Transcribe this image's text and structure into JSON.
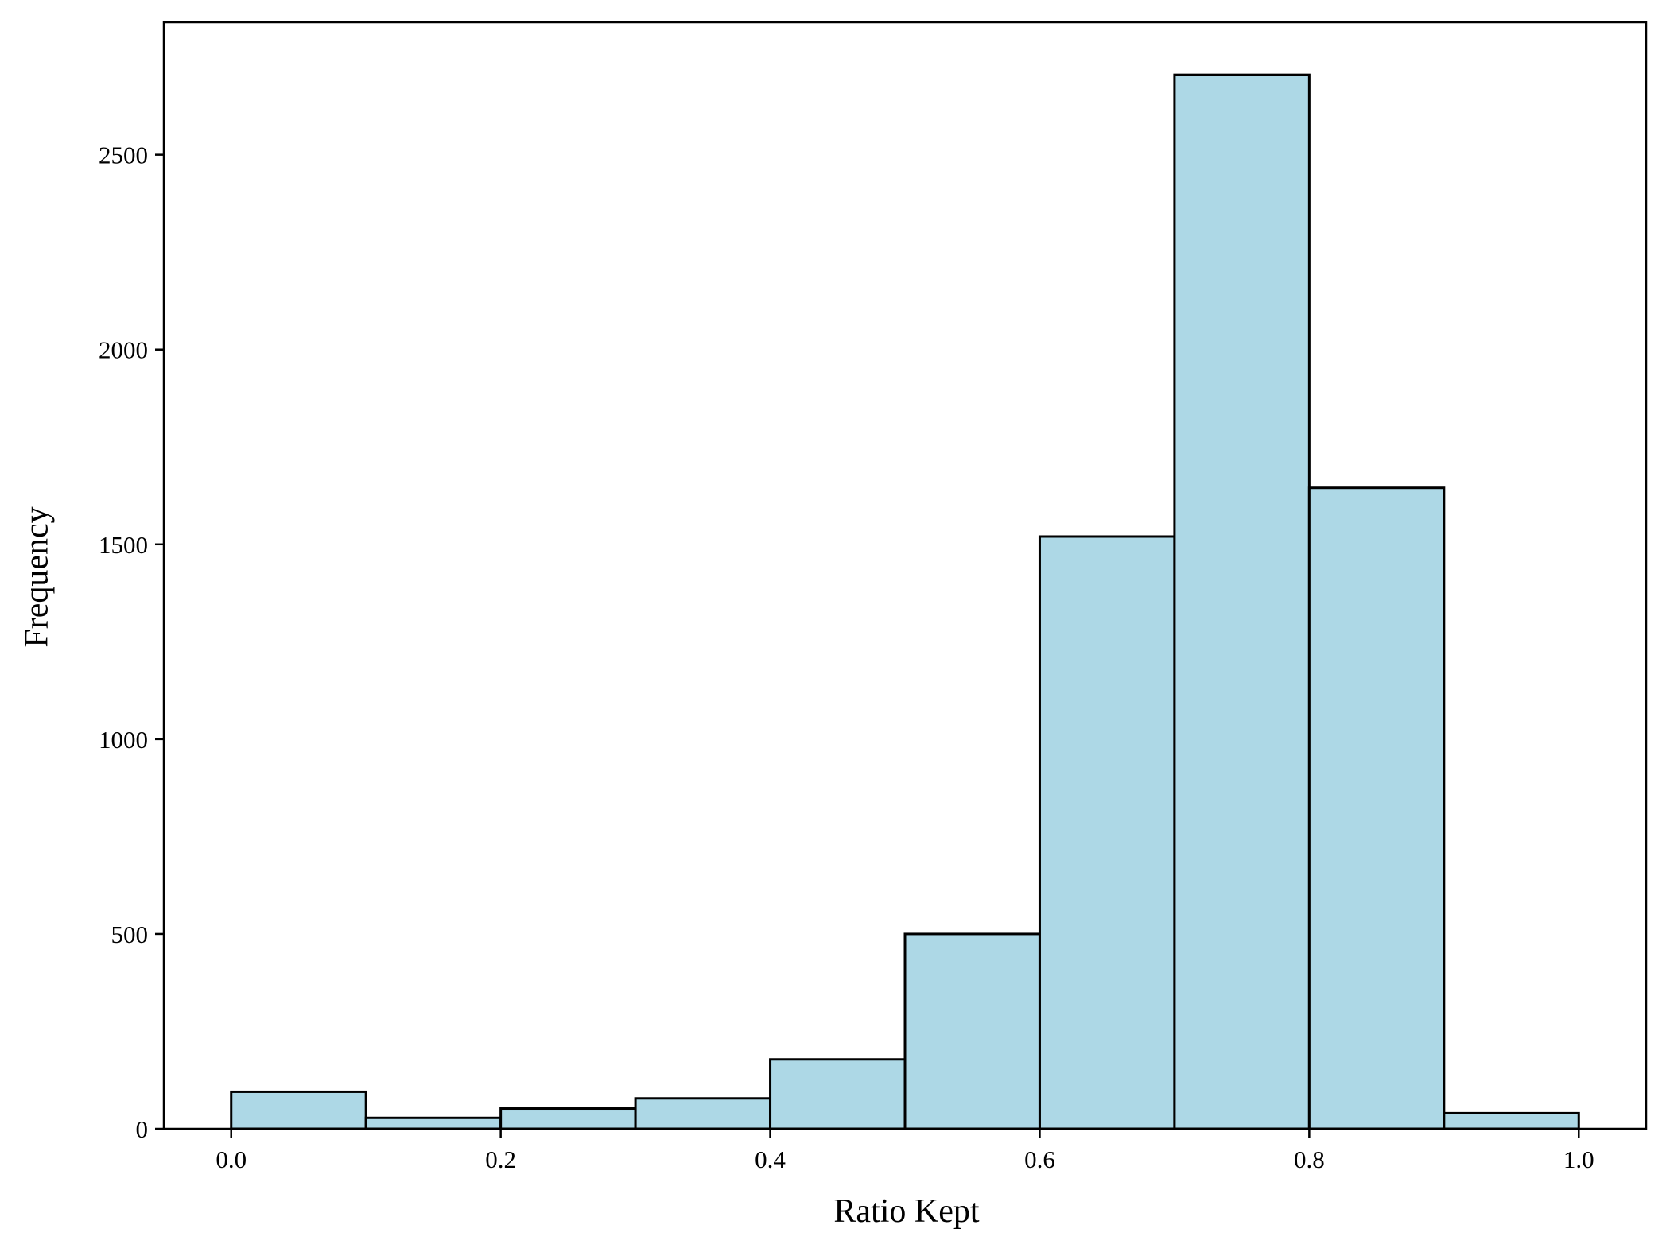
{
  "chart_data": {
    "type": "bar",
    "subtype": "histogram",
    "title": "",
    "xlabel": "Ratio Kept",
    "ylabel": "Frequency",
    "bin_edges": [
      0.0,
      0.1,
      0.2,
      0.3,
      0.4,
      0.5,
      0.6,
      0.7,
      0.8,
      0.9,
      1.0
    ],
    "values": [
      95,
      28,
      52,
      78,
      178,
      500,
      1520,
      2705,
      1645,
      40
    ],
    "xlim": [
      -0.05,
      1.05
    ],
    "ylim": [
      0,
      2840
    ],
    "xticks": [
      0.0,
      0.2,
      0.4,
      0.6,
      0.8,
      1.0
    ],
    "xtick_labels": [
      "0.0",
      "0.2",
      "0.4",
      "0.6",
      "0.8",
      "1.0"
    ],
    "yticks": [
      0,
      500,
      1000,
      1500,
      2000,
      2500
    ],
    "ytick_labels": [
      "0",
      "500",
      "1000",
      "1500",
      "2000",
      "2500"
    ],
    "grid": false,
    "legend": "none",
    "bar_color": "#add8e6",
    "edge_color": "#000000"
  }
}
